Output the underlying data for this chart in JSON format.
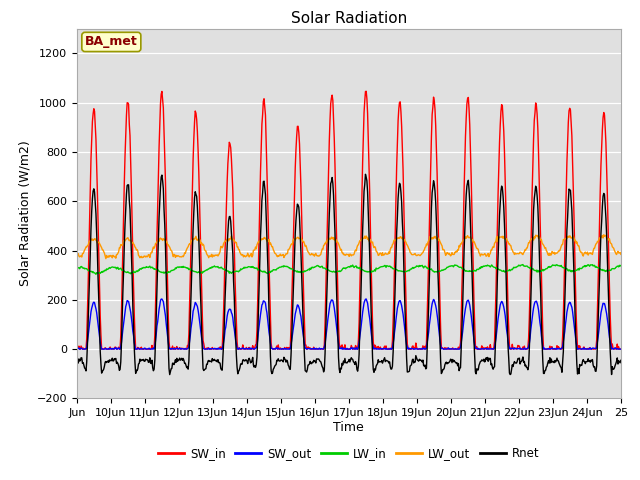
{
  "title": "Solar Radiation",
  "ylabel": "Solar Radiation (W/m2)",
  "xlabel": "Time",
  "annotation": "BA_met",
  "ylim": [
    -200,
    1300
  ],
  "yticks": [
    -200,
    0,
    200,
    400,
    600,
    800,
    1000,
    1200
  ],
  "legend_labels": [
    "SW_in",
    "SW_out",
    "LW_in",
    "LW_out",
    "Rnet"
  ],
  "legend_colors": [
    "#ff0000",
    "#0000ff",
    "#00cc00",
    "#ff9900",
    "#000000"
  ],
  "bg_color": "#e0e0e0",
  "title_fontsize": 11,
  "label_fontsize": 9,
  "tick_fontsize": 8,
  "xlim_start": 9,
  "xlim_end": 25,
  "xtick_start": 9,
  "xtick_end": 25
}
